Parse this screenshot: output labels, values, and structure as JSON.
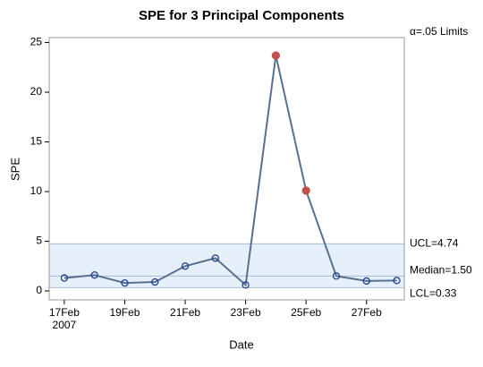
{
  "chart_data": {
    "type": "line",
    "title": "SPE for 3 Principal Components",
    "x_label": "Date",
    "y_label": "SPE",
    "x": [
      "2007-02-17",
      "2007-02-18",
      "2007-02-19",
      "2007-02-20",
      "2007-02-21",
      "2007-02-22",
      "2007-02-23",
      "2007-02-24",
      "2007-02-25",
      "2007-02-26",
      "2007-02-27",
      "2007-02-28"
    ],
    "series": [
      {
        "name": "SPE",
        "color": "#5a7090",
        "marker_color": "#1f3f8f",
        "alarm_color": "#c0504d",
        "values": [
          1.3,
          1.6,
          0.8,
          0.9,
          2.5,
          3.3,
          0.6,
          23.7,
          10.1,
          1.5,
          1.0,
          1.05
        ]
      }
    ],
    "xlim": [
      "2007-02-16T12:00",
      "2007-02-28T06:00"
    ],
    "xticks": [
      {
        "value": "2007-02-17",
        "label": "17Feb\n2007"
      },
      {
        "value": "2007-02-19",
        "label": "19Feb"
      },
      {
        "value": "2007-02-21",
        "label": "21Feb"
      },
      {
        "value": "2007-02-23",
        "label": "23Feb"
      },
      {
        "value": "2007-02-25",
        "label": "25Feb"
      },
      {
        "value": "2007-02-27",
        "label": "27Feb"
      }
    ],
    "ylim": [
      -0.9,
      25.5
    ],
    "yticks": [
      0,
      5,
      10,
      15,
      20,
      25
    ],
    "limits_title": "α=.05 Limits",
    "limits": [
      {
        "name": "UCL",
        "value": 4.74,
        "label": "UCL=4.74"
      },
      {
        "name": "Median",
        "value": 1.5,
        "label": "Median=1.50"
      },
      {
        "name": "LCL",
        "value": 0.33,
        "label": "LCL=0.33"
      }
    ],
    "band_color": "#e6f0fb",
    "limit_line_color": "#a9bcd2"
  }
}
